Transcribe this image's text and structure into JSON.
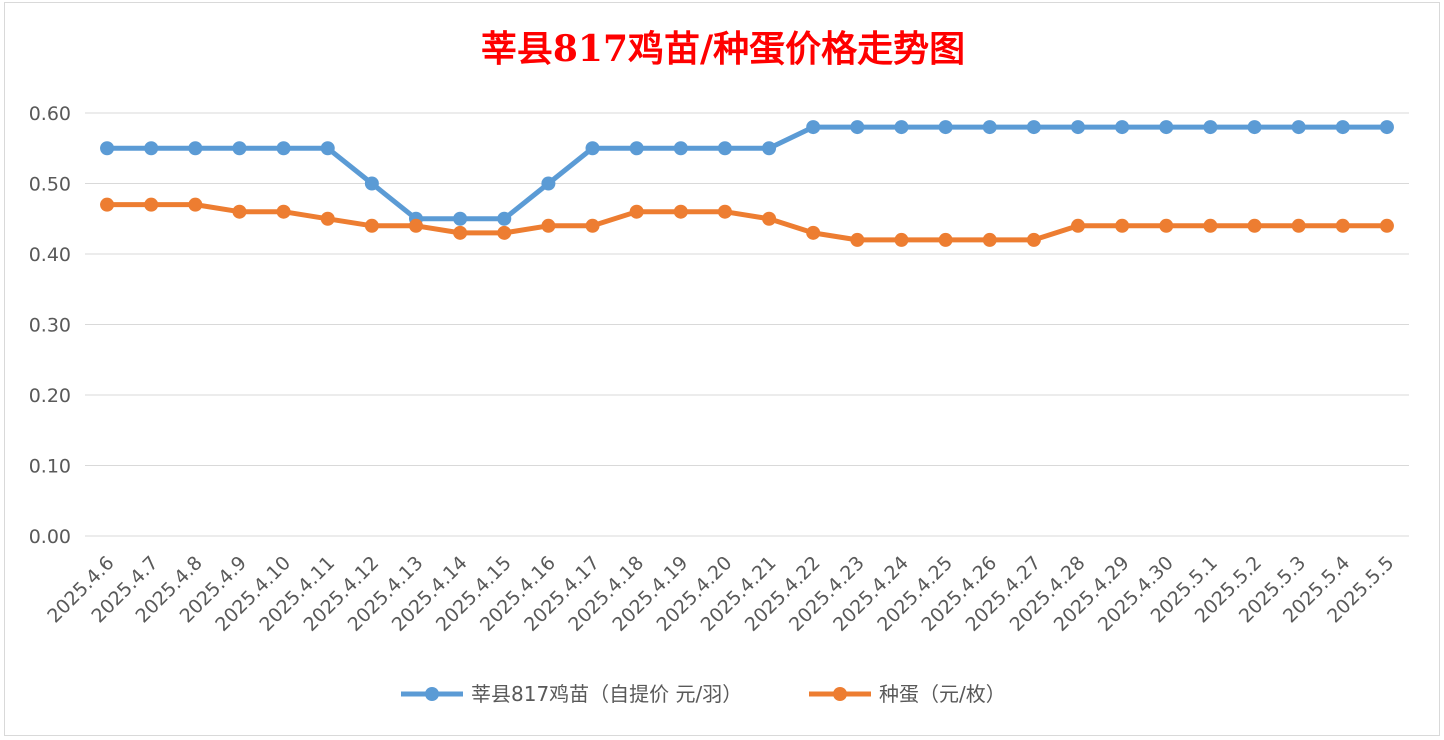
{
  "chart_data": {
    "type": "line",
    "title": "莘县817鸡苗/种蛋价格走势图",
    "xlabel": "",
    "ylabel": "",
    "ylim": [
      0,
      0.6
    ],
    "yticks": [
      "0.00",
      "0.10",
      "0.20",
      "0.30",
      "0.40",
      "0.50",
      "0.60"
    ],
    "grid": true,
    "legend_position": "bottom",
    "categories": [
      "2025.4.6",
      "2025.4.7",
      "2025.4.8",
      "2025.4.9",
      "2025.4.10",
      "2025.4.11",
      "2025.4.12",
      "2025.4.13",
      "2025.4.14",
      "2025.4.15",
      "2025.4.16",
      "2025.4.17",
      "2025.4.18",
      "2025.4.19",
      "2025.4.20",
      "2025.4.21",
      "2025.4.22",
      "2025.4.23",
      "2025.4.24",
      "2025.4.25",
      "2025.4.26",
      "2025.4.27",
      "2025.4.28",
      "2025.4.29",
      "2025.4.30",
      "2025.5.1",
      "2025.5.2",
      "2025.5.3",
      "2025.5.4",
      "2025.5.5"
    ],
    "series": [
      {
        "name": "莘县817鸡苗（自提价 元/羽）",
        "color": "#5b9bd5",
        "values": [
          0.55,
          0.55,
          0.55,
          0.55,
          0.55,
          0.55,
          0.5,
          0.45,
          0.45,
          0.45,
          0.5,
          0.55,
          0.55,
          0.55,
          0.55,
          0.55,
          0.58,
          0.58,
          0.58,
          0.58,
          0.58,
          0.58,
          0.58,
          0.58,
          0.58,
          0.58,
          0.58,
          0.58,
          0.58,
          0.58
        ]
      },
      {
        "name": "种蛋（元/枚）",
        "color": "#ed7d31",
        "values": [
          0.47,
          0.47,
          0.47,
          0.46,
          0.46,
          0.45,
          0.44,
          0.44,
          0.43,
          0.43,
          0.44,
          0.44,
          0.46,
          0.46,
          0.46,
          0.45,
          0.43,
          0.42,
          0.42,
          0.42,
          0.42,
          0.42,
          0.44,
          0.44,
          0.44,
          0.44,
          0.44,
          0.44,
          0.44,
          0.44
        ]
      }
    ]
  }
}
